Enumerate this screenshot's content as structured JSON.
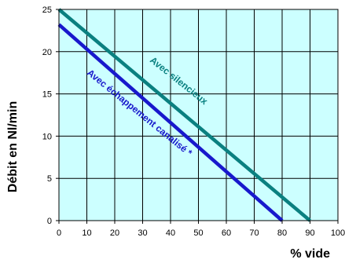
{
  "chart_data": {
    "type": "line",
    "xlabel": "% vide",
    "ylabel": "Débit en Nl/min",
    "xlim": [
      0,
      100
    ],
    "ylim": [
      0,
      25
    ],
    "x_ticks": [
      0,
      10,
      20,
      30,
      40,
      50,
      60,
      70,
      80,
      90,
      100
    ],
    "y_ticks": [
      0,
      5,
      10,
      15,
      20,
      25
    ],
    "x_tick_labels": [
      "0",
      "10",
      "20",
      "30",
      "40",
      "50",
      "60",
      "70",
      "80",
      "90",
      "100"
    ],
    "y_tick_labels": [
      "0",
      "5",
      "10",
      "15",
      "20",
      "25"
    ],
    "grid": true,
    "background_color": "#ccffff",
    "series": [
      {
        "name": "Avec silencieux",
        "color": "#0a8080",
        "points": [
          [
            0,
            25
          ],
          [
            90,
            0
          ]
        ]
      },
      {
        "name": "Avec échappement canalisé *",
        "color": "#1818cc",
        "points": [
          [
            0,
            23.2
          ],
          [
            80,
            0
          ]
        ]
      }
    ]
  }
}
